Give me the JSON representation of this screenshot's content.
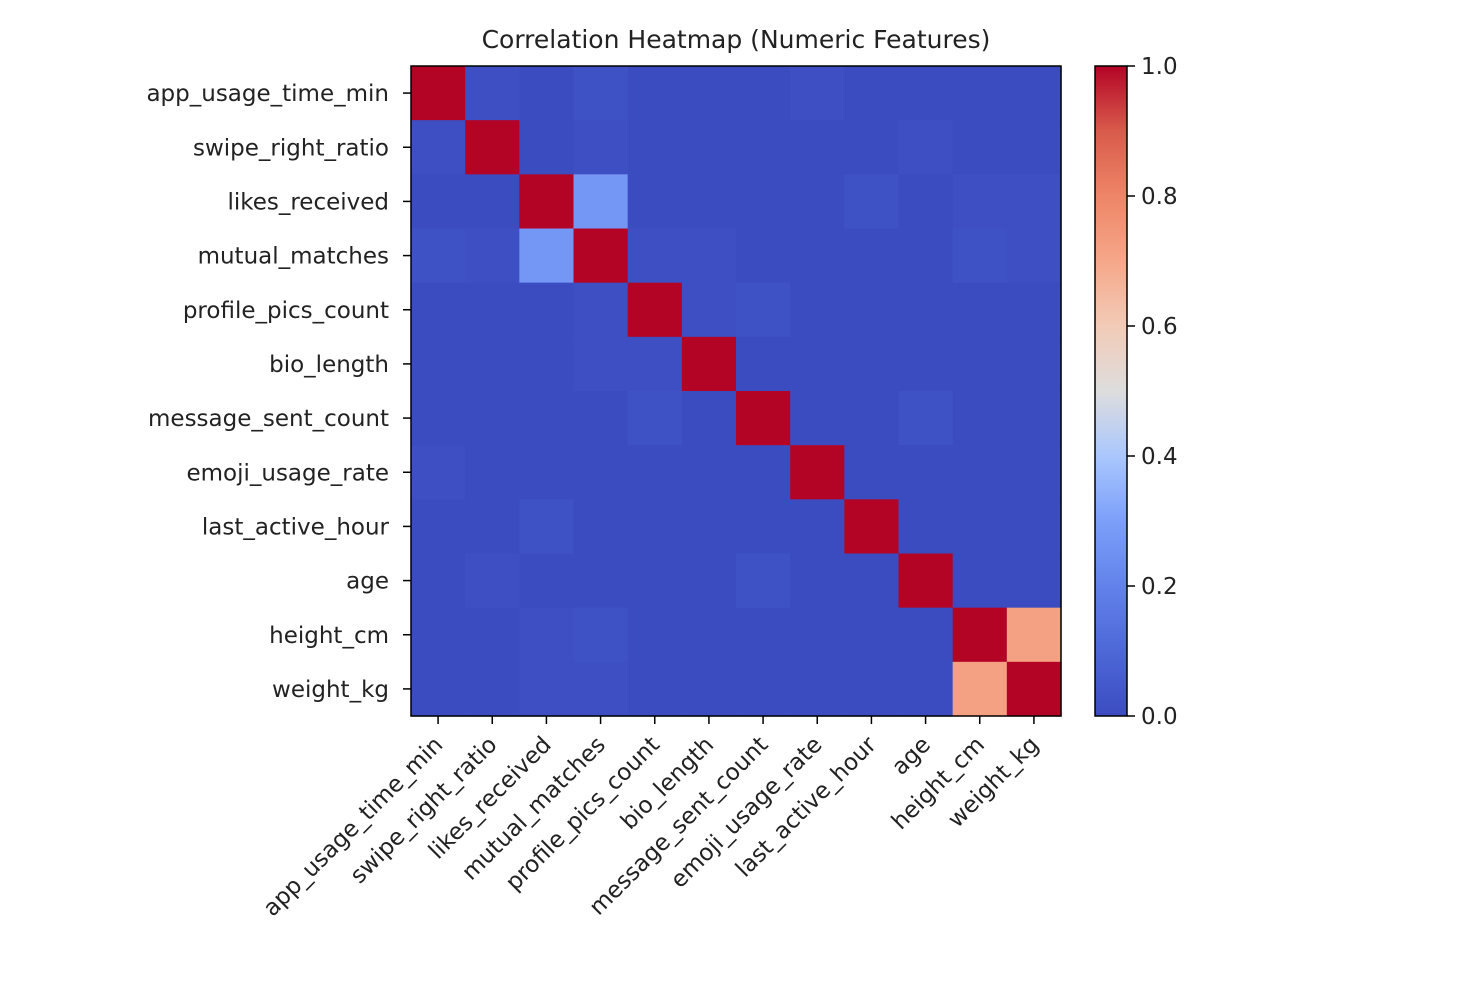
{
  "chart_data": {
    "type": "heatmap",
    "title": "Correlation Heatmap (Numeric Features)",
    "xlabel": "",
    "ylabel": "",
    "labels": [
      "app_usage_time_min",
      "swipe_right_ratio",
      "likes_received",
      "mutual_matches",
      "profile_pics_count",
      "bio_length",
      "message_sent_count",
      "emoji_usage_rate",
      "last_active_hour",
      "age",
      "height_cm",
      "weight_kg"
    ],
    "matrix": [
      [
        1.0,
        0.01,
        0.0,
        0.02,
        -0.01,
        0.0,
        0.0,
        0.01,
        0.0,
        -0.01,
        -0.01,
        0.0
      ],
      [
        0.01,
        1.0,
        0.0,
        0.01,
        0.0,
        0.0,
        -0.01,
        0.0,
        0.0,
        0.01,
        0.0,
        -0.01
      ],
      [
        0.0,
        0.0,
        1.0,
        0.27,
        -0.01,
        0.0,
        0.0,
        0.0,
        0.02,
        0.0,
        0.01,
        0.01
      ],
      [
        0.02,
        0.01,
        0.27,
        1.0,
        0.01,
        0.01,
        -0.01,
        0.0,
        0.0,
        0.0,
        0.02,
        0.01
      ],
      [
        -0.01,
        0.0,
        -0.01,
        0.01,
        1.0,
        0.01,
        0.02,
        0.0,
        -0.01,
        -0.01,
        0.0,
        -0.01
      ],
      [
        0.0,
        0.0,
        0.0,
        0.01,
        0.01,
        1.0,
        0.0,
        -0.01,
        0.0,
        0.0,
        0.0,
        -0.01
      ],
      [
        0.0,
        -0.01,
        0.0,
        -0.01,
        0.02,
        0.0,
        1.0,
        0.0,
        0.0,
        0.02,
        -0.01,
        -0.01
      ],
      [
        0.01,
        0.0,
        0.0,
        0.0,
        0.0,
        -0.01,
        0.0,
        1.0,
        0.0,
        0.0,
        0.0,
        0.0
      ],
      [
        0.0,
        0.0,
        0.02,
        0.0,
        -0.01,
        0.0,
        0.0,
        0.0,
        1.0,
        0.0,
        0.0,
        0.0
      ],
      [
        -0.01,
        0.01,
        0.0,
        0.0,
        -0.01,
        0.0,
        0.02,
        0.0,
        0.0,
        1.0,
        -0.01,
        -0.01
      ],
      [
        -0.01,
        0.0,
        0.01,
        0.02,
        0.0,
        0.0,
        -0.01,
        0.0,
        0.0,
        -0.01,
        1.0,
        0.72
      ],
      [
        0.0,
        -0.01,
        0.01,
        0.01,
        -0.01,
        -0.01,
        -0.01,
        0.0,
        0.0,
        -0.01,
        0.72,
        1.0
      ]
    ],
    "colormap": "coolwarm",
    "vmin": 0.0,
    "vmax": 1.0,
    "colorbar_ticks": [
      0.0,
      0.2,
      0.4,
      0.6,
      0.8,
      1.0
    ],
    "colorbar_tick_labels": [
      "0.0",
      "0.2",
      "0.4",
      "0.6",
      "0.8",
      "1.0"
    ],
    "colorbar_placement": "right",
    "x_tick_rotation": 45,
    "grid": false
  }
}
